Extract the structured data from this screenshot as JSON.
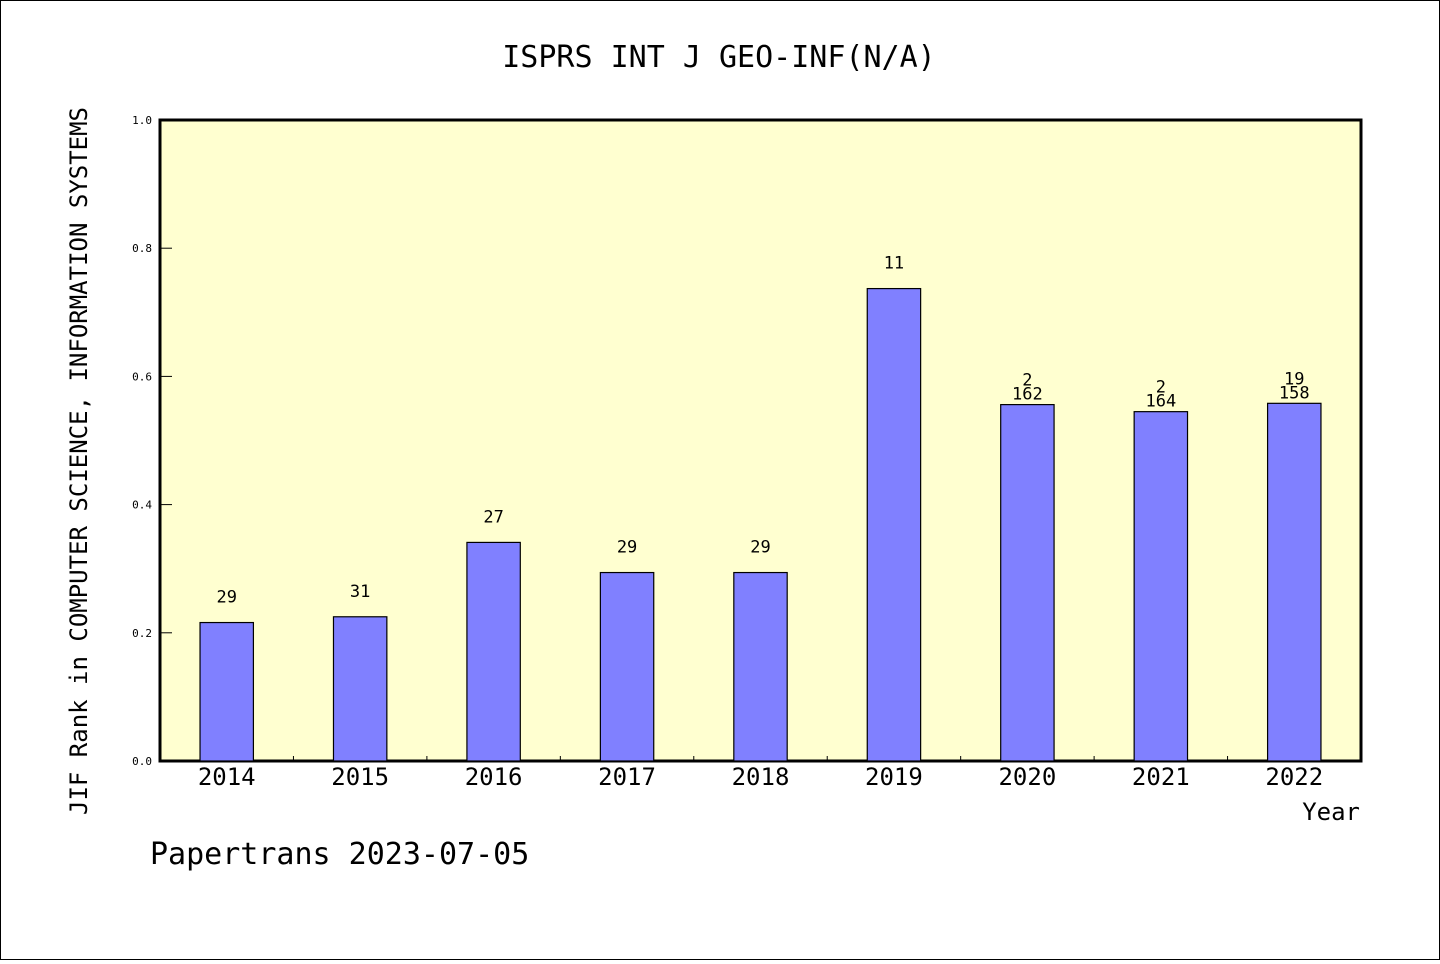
{
  "chart_data": {
    "type": "bar",
    "title": "ISPRS INT J GEO-INF(N/A)",
    "xlabel": "Year",
    "ylabel": "JIF Rank in COMPUTER SCIENCE, INFORMATION SYSTEMS",
    "ylim": [
      0.0,
      1.0
    ],
    "yticks": [
      "0.0",
      "0.2",
      "0.4",
      "0.6",
      "0.8",
      "1.0"
    ],
    "categories": [
      "2014",
      "2015",
      "2016",
      "2017",
      "2018",
      "2019",
      "2020",
      "2021",
      "2022"
    ],
    "values": [
      0.216,
      0.225,
      0.341,
      0.294,
      0.294,
      0.737,
      0.556,
      0.545,
      0.558
    ],
    "bar_labels": [
      [
        "29"
      ],
      [
        "31"
      ],
      [
        "27"
      ],
      [
        "29"
      ],
      [
        "29"
      ],
      [
        "11"
      ],
      [
        "2",
        "162"
      ],
      [
        "2",
        "164"
      ],
      [
        "19",
        "158"
      ]
    ],
    "colors": {
      "plot_background": "#ffffd0",
      "bar_fill": "#8080ff",
      "bar_stroke": "#000000"
    },
    "grid": false,
    "legend": "none"
  },
  "footer": {
    "text": "Papertrans 2023-07-05"
  }
}
